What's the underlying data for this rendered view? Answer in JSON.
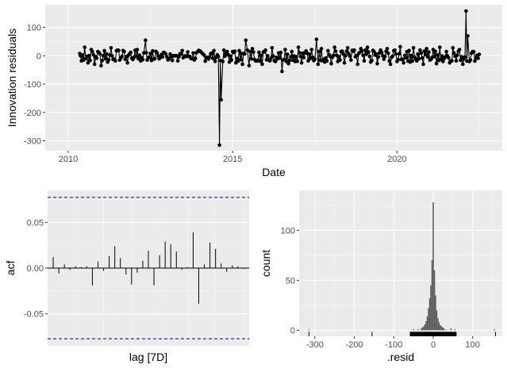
{
  "chart_data": [
    {
      "id": "residuals",
      "type": "line",
      "title": "",
      "xlabel": "Date",
      "ylabel": "Innovation residuals",
      "xlim": [
        2009.3,
        2023.2
      ],
      "ylim": [
        -335,
        180
      ],
      "x_ticks": [
        2010,
        2015,
        2020
      ],
      "x_tick_labels": [
        "2010",
        "2015",
        "2020"
      ],
      "y_ticks": [
        -300,
        -200,
        -100,
        0,
        100
      ],
      "y_tick_labels": [
        "-300",
        "-200",
        "-100",
        "0",
        "100"
      ],
      "grid": true,
      "line_color": "#000000",
      "marker": "point",
      "points_per_year": 30,
      "series": [
        {
          "x": [
            2010.35,
            2010.4,
            2010.5,
            2010.6,
            2010.7,
            2010.8,
            2010.9,
            2011.0,
            2011.1,
            2011.2,
            2011.3,
            2011.4,
            2011.5,
            2011.6,
            2011.7,
            2011.8,
            2011.9,
            2012.0,
            2012.1,
            2012.2,
            2012.3,
            2012.35,
            2012.4,
            2012.5,
            2012.6,
            2012.7,
            2012.8,
            2012.9,
            2013.0,
            2013.1,
            2013.2,
            2013.3,
            2014.6,
            2014.65,
            2014.7,
            2014.8,
            2014.9,
            2015.0,
            2015.1,
            2015.2,
            2015.3,
            2015.4,
            2015.45,
            2015.5,
            2015.6,
            2015.7,
            2015.8,
            2015.9,
            2016.0,
            2016.1,
            2016.2,
            2016.3,
            2016.4,
            2016.5,
            2016.6,
            2016.7,
            2016.8,
            2016.9,
            2017.0,
            2017.1,
            2017.2,
            2017.3,
            2017.4,
            2017.5,
            2017.55,
            2017.6,
            2017.7,
            2017.8,
            2017.9,
            2018.0,
            2018.1,
            2018.2,
            2018.3,
            2018.4,
            2018.5,
            2018.6,
            2018.7,
            2018.8,
            2018.9,
            2019.0,
            2019.1,
            2019.2,
            2019.3,
            2019.4,
            2019.5,
            2019.6,
            2019.7,
            2019.8,
            2019.9,
            2020.0,
            2020.1,
            2020.2,
            2020.3,
            2020.4,
            2020.5,
            2020.6,
            2020.7,
            2020.8,
            2020.9,
            2021.0,
            2021.1,
            2021.2,
            2021.3,
            2021.4,
            2021.5,
            2021.6,
            2021.7,
            2021.8,
            2021.9,
            2022.0,
            2022.1,
            2022.15,
            2022.2,
            2022.3,
            2022.4,
            2022.5
          ],
          "y": [
            8,
            -18,
            30,
            -25,
            22,
            -30,
            15,
            -35,
            18,
            -22,
            28,
            -12,
            20,
            -8,
            15,
            -25,
            12,
            -5,
            22,
            -18,
            10,
            55,
            -15,
            8,
            -12,
            10,
            -6,
            12,
            -4,
            6,
            0,
            0,
            -315,
            -155,
            -20,
            8,
            -22,
            15,
            -25,
            18,
            -30,
            55,
            20,
            -35,
            25,
            -18,
            12,
            -30,
            20,
            -15,
            28,
            -20,
            10,
            -55,
            22,
            -28,
            15,
            -20,
            30,
            -25,
            10,
            -18,
            22,
            -12,
            58,
            -30,
            25,
            -22,
            18,
            -28,
            30,
            -20,
            15,
            -25,
            28,
            -15,
            20,
            -30,
            25,
            -18,
            30,
            -22,
            15,
            -28,
            20,
            -12,
            25,
            -30,
            18,
            -20,
            32,
            -25,
            15,
            -22,
            28,
            -18,
            20,
            -30,
            25,
            -15,
            22,
            -28,
            30,
            -20,
            15,
            -25,
            28,
            -18,
            22,
            -30,
            158,
            70,
            -20,
            15,
            -8,
            5
          ]
        }
      ]
    },
    {
      "id": "acf",
      "type": "bar",
      "title": "",
      "xlabel": "lag [7D]",
      "ylabel": "acf",
      "ylim": [
        -0.085,
        0.085
      ],
      "y_ticks": [
        -0.05,
        0,
        0.05
      ],
      "y_tick_labels": [
        "-0.05",
        "0.00",
        "0.05"
      ],
      "grid": true,
      "conf_limit": 0.0773,
      "conf_color": "#00008b",
      "lags": [
        1,
        2,
        3,
        4,
        5,
        6,
        7,
        8,
        9,
        10,
        11,
        12,
        13,
        14,
        15,
        16,
        17,
        18,
        19,
        20,
        21,
        22,
        23,
        24,
        25,
        26,
        27,
        28,
        29,
        30,
        31,
        32,
        33,
        34,
        35
      ],
      "values": [
        0.012,
        -0.006,
        0.004,
        -0.002,
        0.002,
        0.001,
        0.002,
        -0.019,
        0.007,
        -0.003,
        0.013,
        0.024,
        0.011,
        -0.007,
        -0.018,
        -0.005,
        0.008,
        0.019,
        -0.019,
        0.014,
        0.029,
        0.026,
        0.018,
        -0.002,
        0.001,
        0.039,
        -0.039,
        0.004,
        0.028,
        0.021,
        0.005,
        -0.004,
        0.003,
        0.002,
        -0.001
      ]
    },
    {
      "id": "histogram",
      "type": "bar",
      "title": "",
      "xlabel": ".resid",
      "ylabel": "count",
      "xlim": [
        -340,
        175
      ],
      "ylim": [
        -6,
        140
      ],
      "x_ticks": [
        -300,
        -200,
        -100,
        0,
        100
      ],
      "x_tick_labels": [
        "-300",
        "-200",
        "-100",
        "0",
        "100"
      ],
      "y_ticks": [
        0,
        50,
        100
      ],
      "y_tick_labels": [
        "0",
        "50",
        "100"
      ],
      "grid": true,
      "bar_color": "#595959",
      "bin_width": 3,
      "bins": [
        {
          "x": -315,
          "count": 1
        },
        {
          "x": -50,
          "count": 1
        },
        {
          "x": -38,
          "count": 1
        },
        {
          "x": -30,
          "count": 2
        },
        {
          "x": -27,
          "count": 3
        },
        {
          "x": -24,
          "count": 4
        },
        {
          "x": -21,
          "count": 6
        },
        {
          "x": -18,
          "count": 9
        },
        {
          "x": -15,
          "count": 14
        },
        {
          "x": -12,
          "count": 22
        },
        {
          "x": -9,
          "count": 32
        },
        {
          "x": -6,
          "count": 45
        },
        {
          "x": -3,
          "count": 70
        },
        {
          "x": 0,
          "count": 128
        },
        {
          "x": 3,
          "count": 60
        },
        {
          "x": 6,
          "count": 35
        },
        {
          "x": 9,
          "count": 20
        },
        {
          "x": 12,
          "count": 12
        },
        {
          "x": 15,
          "count": 8
        },
        {
          "x": 18,
          "count": 5
        },
        {
          "x": 21,
          "count": 4
        },
        {
          "x": 24,
          "count": 3
        },
        {
          "x": 27,
          "count": 2
        },
        {
          "x": 33,
          "count": 1
        },
        {
          "x": 45,
          "count": 2
        },
        {
          "x": 55,
          "count": 1
        },
        {
          "x": 155,
          "count": 1
        }
      ],
      "rug": [
        -315,
        -155,
        -58,
        -55,
        -52,
        -50,
        -48,
        -45,
        -42,
        -40,
        -38,
        -35,
        -33,
        -30,
        -28,
        -26,
        -24,
        -22,
        -20,
        -18,
        -16,
        -14,
        -12,
        -10,
        -8,
        -6,
        -4,
        -2,
        0,
        2,
        4,
        6,
        8,
        10,
        12,
        14,
        16,
        18,
        20,
        22,
        25,
        28,
        30,
        32,
        35,
        40,
        45,
        50,
        55,
        58,
        158
      ]
    }
  ]
}
